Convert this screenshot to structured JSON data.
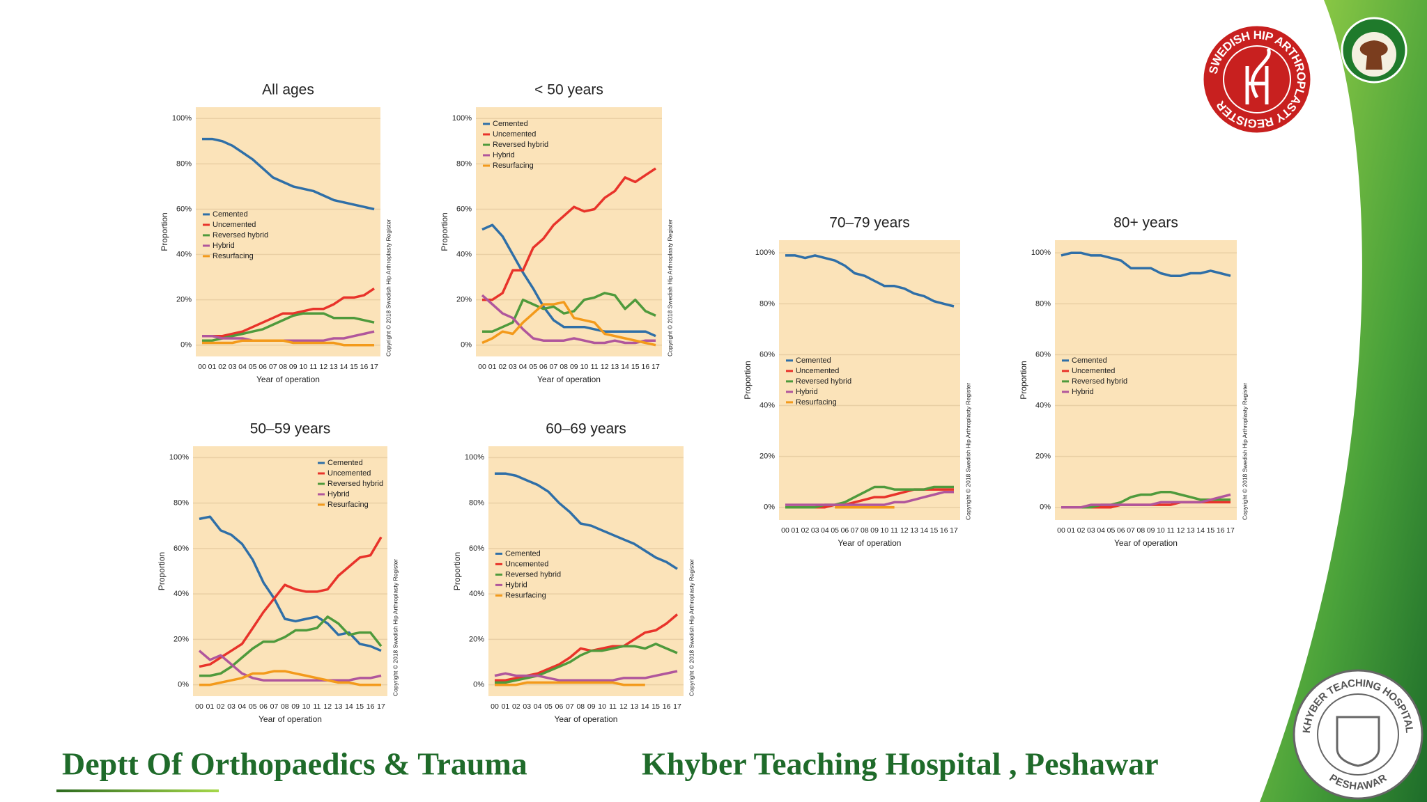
{
  "chart_data": [
    {
      "type": "line",
      "title": "All ages",
      "x_label": "Year of operation",
      "y_label": "Proportion",
      "annotation": "Copyright © 2018 Swedish Hip Arthroplasty Register",
      "categories": [
        "00",
        "01",
        "02",
        "03",
        "04",
        "05",
        "06",
        "07",
        "08",
        "09",
        "10",
        "11",
        "12",
        "13",
        "14",
        "15",
        "16",
        "17"
      ],
      "ylim": [
        -5,
        105
      ],
      "yticks": [
        {
          "value": 0,
          "label": "0%"
        },
        {
          "value": 20,
          "label": "20%"
        },
        {
          "value": 40,
          "label": "40%"
        },
        {
          "value": 60,
          "label": "60%"
        },
        {
          "value": 80,
          "label": "80%"
        },
        {
          "value": 100,
          "label": "100%"
        }
      ],
      "grid": true,
      "legend": "left",
      "series": [
        {
          "name": "Cemented",
          "color": "#2f6fa7",
          "values": [
            91,
            91,
            90,
            88,
            85,
            82,
            78,
            74,
            72,
            70,
            69,
            68,
            66,
            64,
            63,
            62,
            61,
            60
          ]
        },
        {
          "name": "Uncemented",
          "color": "#e8332a",
          "values": [
            4,
            4,
            4,
            5,
            6,
            8,
            10,
            12,
            14,
            14,
            15,
            16,
            16,
            18,
            21,
            21,
            22,
            25
          ]
        },
        {
          "name": "Reversed hybrid",
          "color": "#4f9a3c",
          "values": [
            2,
            2,
            3,
            4,
            5,
            6,
            7,
            9,
            11,
            13,
            14,
            14,
            14,
            12,
            12,
            12,
            11,
            10
          ]
        },
        {
          "name": "Hybrid",
          "color": "#b0569c",
          "values": [
            4,
            4,
            3,
            3,
            3,
            2,
            2,
            2,
            2,
            2,
            2,
            2,
            2,
            3,
            3,
            4,
            5,
            6
          ]
        },
        {
          "name": "Resurfacing",
          "color": "#f39a1b",
          "values": [
            1,
            1,
            1,
            1,
            2,
            2,
            2,
            2,
            2,
            1,
            1,
            1,
            1,
            1,
            0,
            0,
            0,
            0
          ]
        }
      ]
    },
    {
      "type": "line",
      "title": "< 50 years",
      "x_label": "Year of operation",
      "y_label": "Proportion",
      "annotation": "Copyright © 2018 Swedish Hip Arthroplasty Register",
      "categories": [
        "00",
        "01",
        "02",
        "03",
        "04",
        "05",
        "06",
        "07",
        "08",
        "09",
        "10",
        "11",
        "12",
        "13",
        "14",
        "15",
        "16",
        "17"
      ],
      "ylim": [
        -5,
        105
      ],
      "yticks": [
        {
          "value": 0,
          "label": "0%"
        },
        {
          "value": 20,
          "label": "20%"
        },
        {
          "value": 40,
          "label": "40%"
        },
        {
          "value": 60,
          "label": "60%"
        },
        {
          "value": 80,
          "label": "80%"
        },
        {
          "value": 100,
          "label": "100%"
        }
      ],
      "grid": true,
      "legend": "upper left",
      "series": [
        {
          "name": "Cemented",
          "color": "#2f6fa7",
          "values": [
            51,
            53,
            48,
            40,
            32,
            25,
            17,
            11,
            8,
            8,
            8,
            7,
            6,
            6,
            6,
            6,
            6,
            4
          ]
        },
        {
          "name": "Uncemented",
          "color": "#e8332a",
          "values": [
            20,
            20,
            23,
            33,
            33,
            43,
            47,
            53,
            57,
            61,
            59,
            60,
            65,
            68,
            74,
            72,
            75,
            78
          ]
        },
        {
          "name": "Reversed hybrid",
          "color": "#4f9a3c",
          "values": [
            6,
            6,
            8,
            10,
            20,
            18,
            16,
            17,
            14,
            15,
            20,
            21,
            23,
            22,
            16,
            20,
            15,
            13
          ]
        },
        {
          "name": "Hybrid",
          "color": "#b0569c",
          "values": [
            22,
            18,
            14,
            12,
            7,
            3,
            2,
            2,
            2,
            3,
            2,
            1,
            1,
            2,
            1,
            1,
            2,
            2
          ]
        },
        {
          "name": "Resurfacing",
          "color": "#f39a1b",
          "values": [
            1,
            3,
            6,
            5,
            10,
            14,
            18,
            18,
            19,
            12,
            11,
            10,
            5,
            4,
            3,
            2,
            1,
            0
          ]
        }
      ]
    },
    {
      "type": "line",
      "title": "50–59 years",
      "x_label": "Year of operation",
      "y_label": "Proportion",
      "annotation": "Copyright © 2018 Swedish Hip Arthroplasty Register",
      "categories": [
        "00",
        "01",
        "02",
        "03",
        "04",
        "05",
        "06",
        "07",
        "08",
        "09",
        "10",
        "11",
        "12",
        "13",
        "14",
        "15",
        "16",
        "17"
      ],
      "ylim": [
        -5,
        105
      ],
      "yticks": [
        {
          "value": 0,
          "label": "0%"
        },
        {
          "value": 20,
          "label": "20%"
        },
        {
          "value": 40,
          "label": "40%"
        },
        {
          "value": 60,
          "label": "60%"
        },
        {
          "value": 80,
          "label": "80%"
        },
        {
          "value": 100,
          "label": "100%"
        }
      ],
      "grid": true,
      "legend": "upper right",
      "series": [
        {
          "name": "Cemented",
          "color": "#2f6fa7",
          "values": [
            73,
            74,
            68,
            66,
            62,
            55,
            45,
            38,
            29,
            28,
            29,
            30,
            27,
            22,
            23,
            18,
            17,
            15
          ]
        },
        {
          "name": "Uncemented",
          "color": "#e8332a",
          "values": [
            8,
            9,
            12,
            15,
            18,
            25,
            32,
            38,
            44,
            42,
            41,
            41,
            42,
            48,
            52,
            56,
            57,
            65
          ]
        },
        {
          "name": "Reversed hybrid",
          "color": "#4f9a3c",
          "values": [
            4,
            4,
            5,
            8,
            12,
            16,
            19,
            19,
            21,
            24,
            24,
            25,
            30,
            27,
            22,
            23,
            23,
            17
          ]
        },
        {
          "name": "Hybrid",
          "color": "#b0569c",
          "values": [
            15,
            11,
            13,
            9,
            5,
            3,
            2,
            2,
            2,
            2,
            2,
            2,
            2,
            2,
            2,
            3,
            3,
            4
          ]
        },
        {
          "name": "Resurfacing",
          "color": "#f39a1b",
          "values": [
            0,
            0,
            1,
            2,
            3,
            5,
            5,
            6,
            6,
            5,
            4,
            3,
            2,
            1,
            1,
            0,
            0,
            0
          ]
        }
      ]
    },
    {
      "type": "line",
      "title": "60–69 years",
      "x_label": "Year of operation",
      "y_label": "Proportion",
      "annotation": "Copyright © 2018 Swedish Hip Arthroplasty Register",
      "categories": [
        "00",
        "01",
        "02",
        "03",
        "04",
        "05",
        "06",
        "07",
        "08",
        "09",
        "10",
        "11",
        "12",
        "13",
        "14",
        "15",
        "16",
        "17"
      ],
      "ylim": [
        -5,
        105
      ],
      "yticks": [
        {
          "value": 0,
          "label": "0%"
        },
        {
          "value": 20,
          "label": "20%"
        },
        {
          "value": 40,
          "label": "40%"
        },
        {
          "value": 60,
          "label": "60%"
        },
        {
          "value": 80,
          "label": "80%"
        },
        {
          "value": 100,
          "label": "100%"
        }
      ],
      "grid": true,
      "legend": "left",
      "series": [
        {
          "name": "Cemented",
          "color": "#2f6fa7",
          "values": [
            93,
            93,
            92,
            90,
            88,
            85,
            80,
            76,
            71,
            70,
            68,
            66,
            64,
            62,
            59,
            56,
            54,
            51
          ]
        },
        {
          "name": "Uncemented",
          "color": "#e8332a",
          "values": [
            2,
            2,
            3,
            4,
            5,
            7,
            9,
            12,
            16,
            15,
            16,
            17,
            17,
            20,
            23,
            24,
            27,
            31
          ]
        },
        {
          "name": "Reversed hybrid",
          "color": "#4f9a3c",
          "values": [
            1,
            1,
            2,
            3,
            4,
            6,
            8,
            10,
            13,
            15,
            15,
            16,
            17,
            17,
            16,
            18,
            16,
            14
          ]
        },
        {
          "name": "Hybrid",
          "color": "#b0569c",
          "values": [
            4,
            5,
            4,
            4,
            4,
            3,
            2,
            2,
            2,
            2,
            2,
            2,
            3,
            3,
            3,
            4,
            5,
            6
          ]
        },
        {
          "name": "Resurfacing",
          "color": "#f39a1b",
          "values": [
            0,
            0,
            0,
            1,
            1,
            1,
            1,
            1,
            1,
            1,
            1,
            1,
            0,
            0,
            0,
            null,
            null,
            null
          ]
        }
      ]
    },
    {
      "type": "line",
      "title": "70–79 years",
      "x_label": "Year of operation",
      "y_label": "Proportion",
      "annotation": "Copyright © 2018 Swedish Hip Arthroplasty Register",
      "categories": [
        "00",
        "01",
        "02",
        "03",
        "04",
        "05",
        "06",
        "07",
        "08",
        "09",
        "10",
        "11",
        "12",
        "13",
        "14",
        "15",
        "16",
        "17"
      ],
      "ylim": [
        -5,
        105
      ],
      "yticks": [
        {
          "value": 0,
          "label": "0%"
        },
        {
          "value": 20,
          "label": "20%"
        },
        {
          "value": 40,
          "label": "40%"
        },
        {
          "value": 60,
          "label": "60%"
        },
        {
          "value": 80,
          "label": "80%"
        },
        {
          "value": 100,
          "label": "100%"
        }
      ],
      "grid": true,
      "legend": "left",
      "series": [
        {
          "name": "Cemented",
          "color": "#2f6fa7",
          "values": [
            99,
            99,
            98,
            99,
            98,
            97,
            95,
            92,
            91,
            89,
            87,
            87,
            86,
            84,
            83,
            81,
            80,
            79
          ]
        },
        {
          "name": "Uncemented",
          "color": "#e8332a",
          "values": [
            0,
            0,
            0,
            0,
            0,
            1,
            1,
            2,
            3,
            4,
            4,
            5,
            6,
            7,
            7,
            7,
            7,
            7
          ]
        },
        {
          "name": "Reversed hybrid",
          "color": "#4f9a3c",
          "values": [
            0,
            0,
            0,
            0,
            1,
            1,
            2,
            4,
            6,
            8,
            8,
            7,
            7,
            7,
            7,
            8,
            8,
            8
          ]
        },
        {
          "name": "Hybrid",
          "color": "#b0569c",
          "values": [
            1,
            1,
            1,
            1,
            1,
            1,
            1,
            1,
            1,
            1,
            1,
            2,
            2,
            3,
            4,
            5,
            6,
            6
          ]
        },
        {
          "name": "Resurfacing",
          "color": "#f39a1b",
          "values": [
            null,
            null,
            null,
            null,
            null,
            0,
            0,
            0,
            0,
            0,
            0,
            0,
            null,
            null,
            null,
            null,
            null,
            null
          ]
        }
      ]
    },
    {
      "type": "line",
      "title": "80+ years",
      "x_label": "Year of operation",
      "y_label": "Proportion",
      "annotation": "Copyright © 2018 Swedish Hip Arthroplasty Register",
      "categories": [
        "00",
        "01",
        "02",
        "03",
        "04",
        "05",
        "06",
        "07",
        "08",
        "09",
        "10",
        "11",
        "12",
        "13",
        "14",
        "15",
        "16",
        "17"
      ],
      "ylim": [
        -5,
        105
      ],
      "yticks": [
        {
          "value": 0,
          "label": "0%"
        },
        {
          "value": 20,
          "label": "20%"
        },
        {
          "value": 40,
          "label": "40%"
        },
        {
          "value": 60,
          "label": "60%"
        },
        {
          "value": 80,
          "label": "80%"
        },
        {
          "value": 100,
          "label": "100%"
        }
      ],
      "grid": true,
      "legend": "left",
      "series": [
        {
          "name": "Cemented",
          "color": "#2f6fa7",
          "values": [
            99,
            100,
            100,
            99,
            99,
            98,
            97,
            94,
            94,
            94,
            92,
            91,
            91,
            92,
            92,
            93,
            92,
            91
          ]
        },
        {
          "name": "Uncemented",
          "color": "#e8332a",
          "values": [
            0,
            0,
            0,
            0,
            0,
            0,
            1,
            1,
            1,
            1,
            1,
            1,
            2,
            2,
            2,
            2,
            2,
            2
          ]
        },
        {
          "name": "Reversed hybrid",
          "color": "#4f9a3c",
          "values": [
            0,
            0,
            0,
            0,
            1,
            1,
            2,
            4,
            5,
            5,
            6,
            6,
            5,
            4,
            3,
            3,
            3,
            3
          ]
        },
        {
          "name": "Hybrid",
          "color": "#b0569c",
          "values": [
            0,
            0,
            0,
            1,
            1,
            1,
            1,
            1,
            1,
            1,
            2,
            2,
            2,
            2,
            2,
            3,
            4,
            5
          ]
        }
      ]
    }
  ],
  "footer": {
    "left": "Deptt Of Orthopaedics & Trauma",
    "right": "Khyber Teaching Hospital , Peshawar"
  },
  "logos": {
    "swedish": "SWEDISH HIP ARTHROPLASTY REGISTER",
    "khyber_top": "KHYBER TEACHING HOSPITAL",
    "khyber_bottom": "PESHAWAR"
  }
}
